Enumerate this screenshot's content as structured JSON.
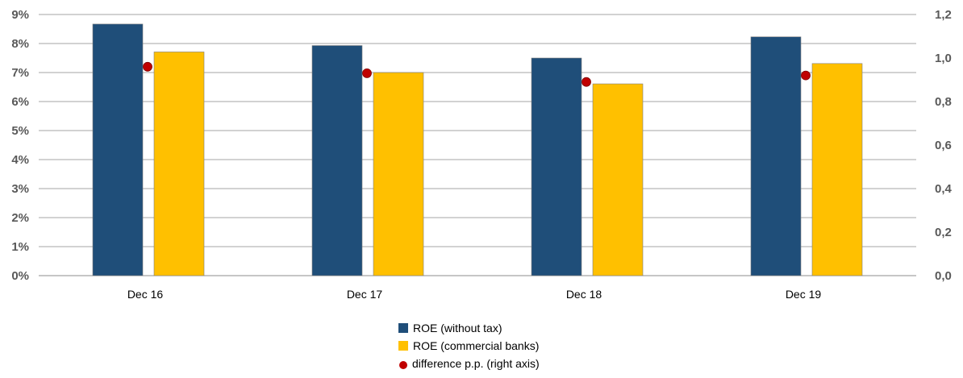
{
  "chart_data": {
    "type": "bar",
    "categories": [
      "Dec 16",
      "Dec 17",
      "Dec 18",
      "Dec 19"
    ],
    "series": [
      {
        "name": "ROE (without tax)",
        "axis": "left",
        "type": "bar",
        "color": "#1F4E79",
        "values": [
          8.67,
          7.93,
          7.5,
          8.23
        ]
      },
      {
        "name": "ROE (commercial banks)",
        "axis": "left",
        "type": "bar",
        "color": "#FFC000",
        "values": [
          7.71,
          7.0,
          6.61,
          7.31
        ]
      },
      {
        "name": "difference p.p. (right axis)",
        "axis": "right",
        "type": "scatter",
        "color": "#C00000",
        "values": [
          0.96,
          0.93,
          0.89,
          0.92
        ]
      }
    ],
    "left_axis": {
      "min": 0,
      "max": 9,
      "ticks": [
        "0%",
        "1%",
        "2%",
        "3%",
        "4%",
        "5%",
        "6%",
        "7%",
        "8%",
        "9%"
      ]
    },
    "right_axis": {
      "min": 0,
      "max": 1.2,
      "ticks": [
        "0,0",
        "0,2",
        "0,4",
        "0,6",
        "0,8",
        "1,0",
        "1,2"
      ]
    },
    "grid": true,
    "legend_position": "bottom-center"
  }
}
